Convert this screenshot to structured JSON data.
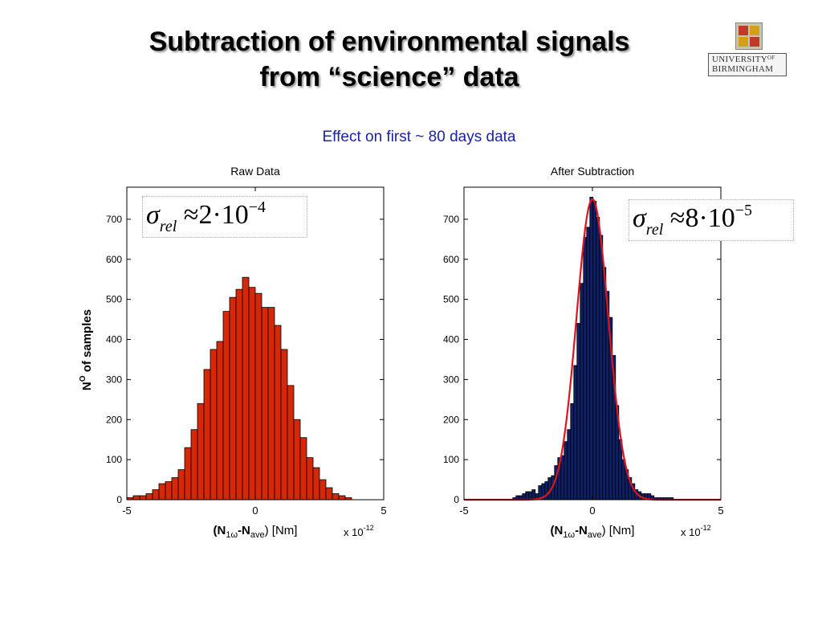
{
  "slide": {
    "title_line1": "Subtraction of environmental signals",
    "title_line2": "from “science” data",
    "subtitle": "Effect on first ~ 80 days data",
    "logo": {
      "line1": "UNIVERSITY",
      "line1_sup": "OF",
      "line2": "BIRMINGHAM"
    }
  },
  "colors": {
    "raw_bar": "#d42a04",
    "sub_bar": "#0c1f6e",
    "fit_line": "#e0141e",
    "subtitle": "#1a22a8"
  },
  "chart_data": [
    {
      "type": "bar",
      "title": "Raw Data",
      "ylabel": "N",
      "ylabel_sup": "O",
      "ylabel_rest": " of samples",
      "xlabel": "(N",
      "xlabel_sub1": "1ω",
      "xlabel_mid": "-N",
      "xlabel_sub2": "ave",
      "xlabel_end": ") [Nm]",
      "x_multiplier": "x 10",
      "x_multiplier_exp": "-12",
      "xlim": [
        -5,
        5
      ],
      "ylim": [
        0,
        780
      ],
      "xticks": [
        "-5",
        "0",
        "5"
      ],
      "yticks": [
        "0",
        "100",
        "200",
        "300",
        "400",
        "500",
        "600",
        "700"
      ],
      "bin_start": -5.0,
      "bin_width": 0.25,
      "values": [
        5,
        10,
        10,
        15,
        25,
        40,
        45,
        55,
        75,
        130,
        175,
        240,
        325,
        375,
        395,
        470,
        505,
        525,
        555,
        530,
        515,
        480,
        480,
        435,
        375,
        285,
        200,
        155,
        105,
        80,
        50,
        30,
        15,
        10,
        5,
        0,
        0,
        0,
        0,
        0
      ],
      "annotation": {
        "sigma": "σ",
        "sub": "rel",
        "approx": "≈",
        "mant": "2",
        "dot": "·",
        "base": "10",
        "exp": "−4"
      }
    },
    {
      "type": "bar",
      "title": "After Subtraction",
      "xlabel": "(N",
      "xlabel_sub1": "1ω",
      "xlabel_mid": "-N",
      "xlabel_sub2": "ave",
      "xlabel_end": ") [Nm]",
      "x_multiplier": "x 10",
      "x_multiplier_exp": "-12",
      "xlim": [
        -5,
        5
      ],
      "ylim": [
        0,
        780
      ],
      "xticks": [
        "-5",
        "0",
        "5"
      ],
      "yticks": [
        "0",
        "100",
        "200",
        "300",
        "400",
        "500",
        "600",
        "700"
      ],
      "bin_start": -3.1,
      "bin_width": 0.125,
      "values": [
        5,
        10,
        10,
        15,
        20,
        20,
        25,
        15,
        35,
        40,
        45,
        55,
        60,
        85,
        105,
        110,
        145,
        175,
        240,
        335,
        440,
        540,
        655,
        680,
        755,
        745,
        705,
        660,
        580,
        520,
        455,
        360,
        235,
        150,
        100,
        75,
        55,
        40,
        25,
        20,
        15,
        15,
        15,
        10,
        5,
        5,
        5,
        5,
        5,
        5
      ],
      "fit": {
        "type": "gaussian",
        "mean": 0.0,
        "sigma": 0.62,
        "peak": 750
      },
      "annotation": {
        "sigma": "σ",
        "sub": "rel",
        "approx": "≈",
        "mant": "8",
        "dot": "·",
        "base": "10",
        "exp": "−5"
      }
    }
  ]
}
